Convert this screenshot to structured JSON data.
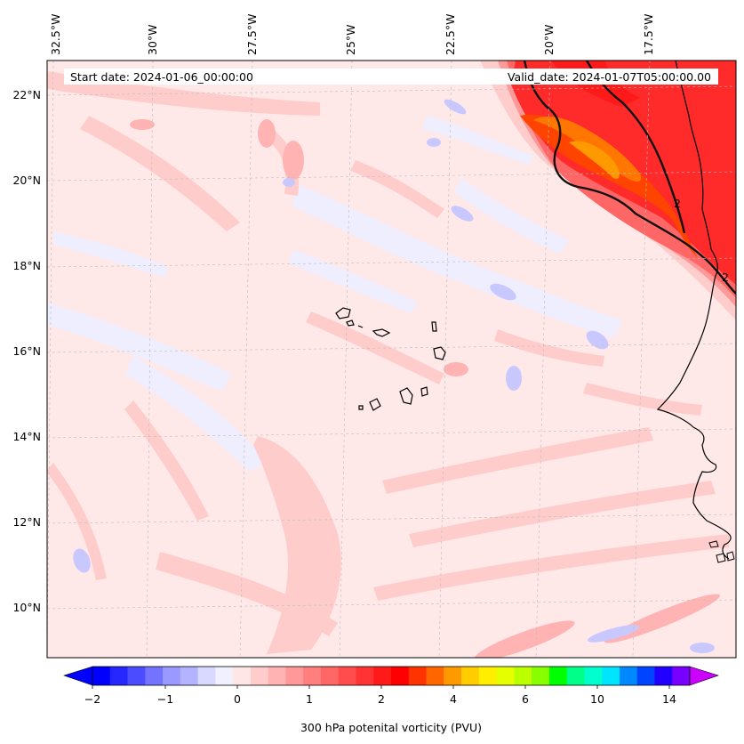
{
  "header": {
    "start_date": "Start date: 2024-01-06_00:00:00",
    "valid_date": "Valid_date: 2024-01-07T05:00:00.00"
  },
  "axes": {
    "lon_labels": [
      "32.5°W",
      "30°W",
      "27.5°W",
      "25°W",
      "22.5°W",
      "20°W",
      "17.5°W"
    ],
    "lat_labels": [
      "22°N",
      "20°N",
      "18°N",
      "16°N",
      "14°N",
      "12°N",
      "10°N"
    ]
  },
  "colorbar": {
    "label": "300 hPa potenital vorticity (PVU)",
    "tick_labels": [
      "−2",
      "−1",
      "0",
      "1",
      "2",
      "4",
      "6",
      "10",
      "14"
    ],
    "colors": [
      "#0000ff",
      "#2626ff",
      "#4c4cff",
      "#7373ff",
      "#9999ff",
      "#b3b3ff",
      "#d9d9ff",
      "#f0f0ff",
      "#ffe6e6",
      "#ffcccc",
      "#ffb3b3",
      "#ff9999",
      "#ff7f7f",
      "#ff6666",
      "#ff4c4c",
      "#ff3333",
      "#ff1a1a",
      "#ff0000",
      "#ff3300",
      "#ff6600",
      "#ff9900",
      "#ffcc00",
      "#ffee00",
      "#e5ff00",
      "#bbff00",
      "#88ff00",
      "#00ff00",
      "#00ff88",
      "#00ffcc",
      "#00e5ff",
      "#0088ff",
      "#0044ff",
      "#2200ff",
      "#7700ff"
    ],
    "under_color": "#0000ff",
    "over_color": "#cc00ff"
  },
  "contour_label": "2"
}
